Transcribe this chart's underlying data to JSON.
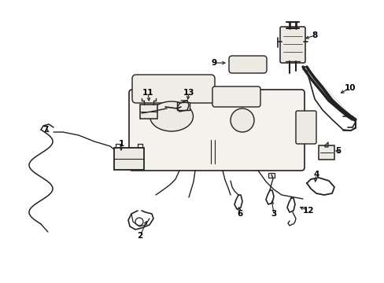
{
  "background_color": "#ffffff",
  "line_color": "#222222",
  "text_color": "#000000",
  "fig_width": 4.89,
  "fig_height": 3.6,
  "dpi": 100,
  "lw": 1.0
}
